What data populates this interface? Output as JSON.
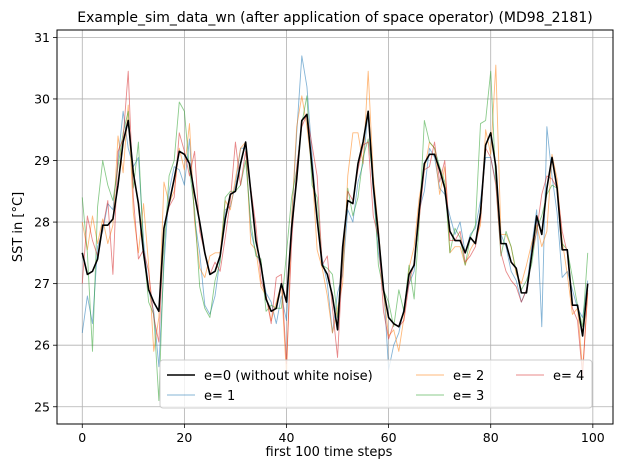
{
  "chart_data": {
    "type": "line",
    "title": "Example_sim_data_wn (after application of space operator) (MD98_2181)",
    "xlabel": "first 100 time steps",
    "ylabel": "SST in [°C]",
    "xlim": [
      -4.95,
      103.95
    ],
    "ylim": [
      24.72,
      31.12
    ],
    "xticks": [
      0,
      20,
      40,
      60,
      80,
      100
    ],
    "yticks": [
      25,
      26,
      27,
      28,
      29,
      30,
      31
    ],
    "grid": true,
    "legend_position": "lower-right",
    "legend_columns": 3,
    "series": [
      {
        "name": "e=0 (without white noise)",
        "color": "#000000",
        "values": [
          27.5,
          27.15,
          27.2,
          27.4,
          27.95,
          27.95,
          28.05,
          28.6,
          29.3,
          29.65,
          28.8,
          28.3,
          27.5,
          26.9,
          26.7,
          26.55,
          27.9,
          28.3,
          28.7,
          29.15,
          29.1,
          28.95,
          28.45,
          28.0,
          27.5,
          27.15,
          27.2,
          27.45,
          28.05,
          28.45,
          28.5,
          28.95,
          29.3,
          28.5,
          27.7,
          27.3,
          26.75,
          26.55,
          26.6,
          27.0,
          26.7,
          27.9,
          28.7,
          29.65,
          29.75,
          28.9,
          28.05,
          27.3,
          27.15,
          26.8,
          26.25,
          27.6,
          28.35,
          28.3,
          28.95,
          29.3,
          29.8,
          28.6,
          27.8,
          26.9,
          26.45,
          26.35,
          26.3,
          26.55,
          27.15,
          27.3,
          28.2,
          28.95,
          29.1,
          29.1,
          28.85,
          28.55,
          27.85,
          27.7,
          27.7,
          27.5,
          27.75,
          27.65,
          28.15,
          29.25,
          29.45,
          28.9,
          27.65,
          27.65,
          27.35,
          27.25,
          26.85,
          26.85,
          27.45,
          28.1,
          27.8,
          28.55,
          29.05,
          28.55,
          27.55,
          27.55,
          26.65,
          26.65,
          26.15,
          27.0
        ]
      },
      {
        "name": "e= 1",
        "color": "#1f77b4",
        "values": [
          26.2,
          26.8,
          26.35,
          27.6,
          27.85,
          28.3,
          28.2,
          29.0,
          29.8,
          29.2,
          28.9,
          29.05,
          27.7,
          26.9,
          26.55,
          25.65,
          27.3,
          28.5,
          28.9,
          28.85,
          28.6,
          29.35,
          28.05,
          27.5,
          26.65,
          26.5,
          26.8,
          27.4,
          28.2,
          28.25,
          28.6,
          29.2,
          29.2,
          27.85,
          27.5,
          27.3,
          26.85,
          26.7,
          26.35,
          26.8,
          26.4,
          28.0,
          29.45,
          30.7,
          30.2,
          29.1,
          28.0,
          27.4,
          27.0,
          26.2,
          26.85,
          27.15,
          28.2,
          28.0,
          28.65,
          28.95,
          29.8,
          28.5,
          27.5,
          27.0,
          25.6,
          26.0,
          26.2,
          26.6,
          27.0,
          27.2,
          28.2,
          28.5,
          29.2,
          29.05,
          28.55,
          28.45,
          28.1,
          27.8,
          28.0,
          27.5,
          27.8,
          27.9,
          28.35,
          29.05,
          29.05,
          28.65,
          27.8,
          27.6,
          27.2,
          27.05,
          26.7,
          26.9,
          27.6,
          28.2,
          26.3,
          29.55,
          28.75,
          28.15,
          27.1,
          27.2,
          26.9,
          26.6,
          26.45,
          27.05
        ]
      },
      {
        "name": "e= 2",
        "color": "#ff7f0e",
        "values": [
          28.0,
          27.55,
          28.1,
          27.65,
          28.05,
          27.65,
          27.95,
          29.4,
          28.8,
          29.9,
          28.15,
          27.5,
          28.3,
          27.3,
          25.9,
          26.45,
          28.65,
          28.3,
          28.5,
          29.2,
          28.85,
          29.6,
          28.0,
          27.25,
          27.1,
          27.45,
          27.5,
          27.5,
          28.35,
          28.2,
          28.7,
          29.2,
          29.3,
          27.65,
          27.55,
          26.95,
          26.8,
          26.4,
          26.7,
          27.0,
          25.5,
          28.05,
          29.55,
          30.05,
          29.55,
          28.85,
          27.55,
          27.25,
          26.8,
          26.2,
          26.6,
          27.0,
          28.75,
          29.45,
          29.45,
          28.95,
          30.45,
          28.75,
          27.9,
          26.85,
          26.15,
          26.25,
          25.9,
          26.45,
          27.25,
          27.6,
          28.4,
          28.85,
          29.3,
          29.2,
          28.45,
          28.9,
          27.5,
          27.6,
          27.6,
          27.3,
          27.55,
          27.7,
          27.95,
          29.5,
          29.1,
          30.55,
          27.8,
          27.8,
          27.6,
          27.15,
          27.0,
          27.3,
          27.65,
          27.95,
          27.6,
          27.85,
          29.1,
          28.7,
          27.7,
          27.15,
          26.5,
          26.6,
          25.6,
          26.85
        ]
      },
      {
        "name": "e= 3",
        "color": "#2ca02c",
        "values": [
          28.4,
          27.5,
          25.9,
          28.25,
          29.0,
          28.6,
          28.35,
          28.9,
          29.45,
          29.8,
          28.55,
          29.3,
          27.55,
          26.7,
          26.5,
          25.1,
          27.5,
          28.75,
          29.0,
          29.95,
          29.8,
          28.85,
          28.2,
          26.95,
          26.6,
          26.45,
          27.05,
          27.35,
          28.4,
          28.5,
          28.5,
          28.6,
          29.0,
          28.0,
          27.45,
          27.4,
          26.55,
          26.65,
          26.6,
          26.6,
          27.5,
          28.4,
          28.85,
          29.6,
          30.05,
          28.6,
          28.4,
          27.3,
          27.25,
          27.15,
          26.45,
          27.35,
          28.55,
          28.1,
          28.4,
          29.05,
          29.35,
          28.7,
          27.3,
          26.9,
          26.7,
          26.3,
          26.9,
          26.55,
          27.3,
          26.75,
          28.0,
          29.65,
          29.3,
          29.2,
          28.9,
          28.65,
          27.5,
          27.9,
          27.75,
          27.3,
          27.75,
          27.95,
          29.6,
          29.65,
          30.45,
          28.65,
          27.45,
          27.85,
          27.6,
          27.2,
          26.9,
          27.05,
          27.3,
          27.9,
          28.1,
          28.45,
          28.6,
          28.55,
          27.65,
          27.55,
          27.1,
          26.65,
          26.3,
          27.5
        ]
      },
      {
        "name": "e= 4",
        "color": "#d62728",
        "values": [
          27.0,
          28.1,
          27.7,
          27.45,
          27.9,
          28.35,
          27.15,
          29.15,
          29.35,
          30.45,
          28.4,
          27.4,
          27.55,
          27.2,
          26.45,
          26.05,
          27.9,
          28.25,
          28.4,
          29.45,
          29.15,
          28.75,
          29.15,
          27.85,
          27.5,
          27.15,
          27.35,
          27.2,
          27.75,
          28.35,
          29.3,
          28.6,
          29.15,
          28.55,
          27.95,
          27.05,
          26.8,
          26.35,
          27.1,
          27.15,
          25.7,
          27.65,
          28.9,
          29.55,
          29.75,
          29.25,
          28.75,
          27.3,
          27.45,
          26.6,
          25.8,
          27.4,
          28.5,
          28.35,
          28.85,
          29.25,
          29.3,
          28.1,
          27.75,
          26.55,
          26.1,
          26.35,
          26.3,
          26.4,
          27.0,
          27.35,
          28.05,
          28.85,
          28.9,
          29.3,
          28.65,
          29.0,
          27.7,
          27.7,
          27.85,
          27.35,
          27.45,
          27.6,
          28.05,
          29.2,
          29.05,
          28.6,
          27.5,
          27.2,
          27.05,
          26.95,
          26.7,
          26.9,
          27.45,
          27.85,
          28.45,
          28.75,
          28.7,
          28.55,
          27.85,
          27.5,
          26.6,
          26.4,
          25.5,
          26.9
        ]
      }
    ]
  }
}
